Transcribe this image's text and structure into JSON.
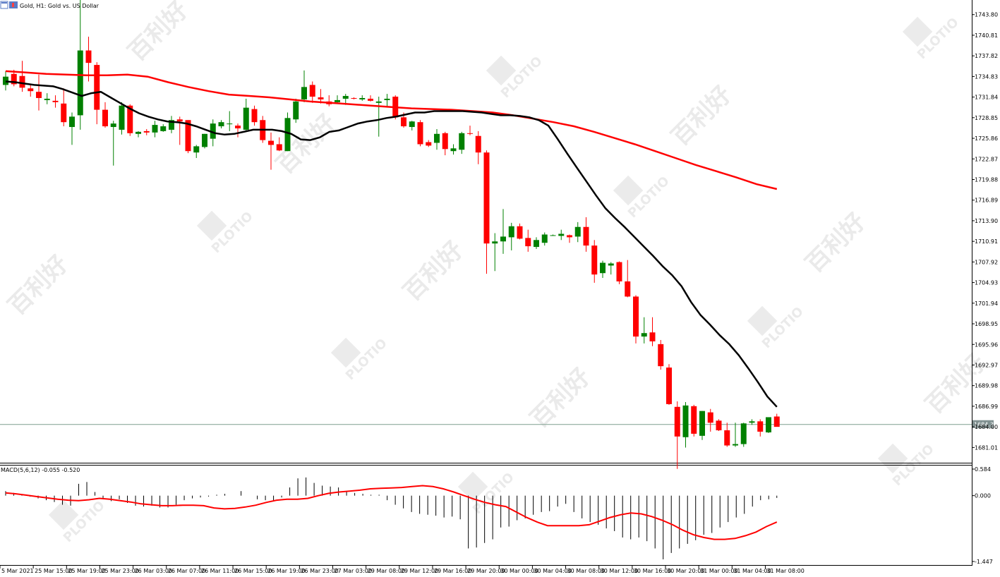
{
  "header": {
    "title": "Gold, H1:  Gold vs. US Dollar",
    "icons": [
      "chart-window-icon",
      "symbol-icon"
    ]
  },
  "watermark": {
    "brand": "PLOTIO",
    "cn": "百利好"
  },
  "chart_data": [
    {
      "type": "candlestick",
      "title": "Gold, H1:  Gold vs. US Dollar",
      "ylim": [
        1679.0,
        1745.0
      ],
      "y_ticks": [
        "1743.80",
        "1740.81",
        "1737.82",
        "1734.83",
        "1731.84",
        "1728.85",
        "1725.86",
        "1722.87",
        "1719.88",
        "1716.89",
        "1713.90",
        "1710.91",
        "1707.92",
        "1704.93",
        "1701.94",
        "1698.95",
        "1695.96",
        "1692.97",
        "1689.98",
        "1686.99",
        "1684.00",
        "1681.01"
      ],
      "current_price": "1684.35",
      "colors": {
        "bull": "#008000",
        "bear": "#ff0000",
        "ma_fast": "#000000",
        "ma_slow": "#ff0000",
        "price_line": "#7f9f8f"
      },
      "series": [
        {
          "values": [
            [
              1733.6,
              1735.6,
              1732.8,
              1734.8
            ],
            [
              1735.2,
              1735.8,
              1733.4,
              1733.7
            ],
            [
              1734.9,
              1737.1,
              1732.6,
              1733.2
            ],
            [
              1733.1,
              1733.6,
              1731.9,
              1732.7
            ],
            [
              1732.6,
              1735.1,
              1729.9,
              1731.7
            ],
            [
              1731.4,
              1732.4,
              1730.8,
              1731.6
            ],
            [
              1731.3,
              1732.1,
              1730.3,
              1731.1
            ],
            [
              1730.9,
              1733.1,
              1727.6,
              1728.2
            ],
            [
              1727.5,
              1729.6,
              1724.9,
              1729.0
            ],
            [
              1729.2,
              1746.3,
              1727.1,
              1738.6
            ],
            [
              1738.6,
              1740.6,
              1734.1,
              1736.8
            ],
            [
              1736.5,
              1736.9,
              1727.9,
              1730.0
            ],
            [
              1730.0,
              1731.1,
              1727.4,
              1727.6
            ],
            [
              1727.5,
              1728.4,
              1721.9,
              1728.0
            ],
            [
              1727.1,
              1731.1,
              1726.4,
              1730.6
            ],
            [
              1730.6,
              1730.8,
              1726.2,
              1726.6
            ],
            [
              1726.5,
              1726.9,
              1726.0,
              1726.8
            ],
            [
              1726.9,
              1727.2,
              1726.3,
              1726.7
            ],
            [
              1726.7,
              1728.4,
              1726.0,
              1727.8
            ],
            [
              1726.9,
              1727.9,
              1726.8,
              1727.6
            ],
            [
              1727.1,
              1729.1,
              1726.6,
              1728.5
            ],
            [
              1728.6,
              1729.0,
              1724.9,
              1728.3
            ],
            [
              1728.5,
              1728.5,
              1723.7,
              1724.0
            ],
            [
              1723.8,
              1724.9,
              1723.0,
              1724.7
            ],
            [
              1724.6,
              1726.5,
              1724.4,
              1726.5
            ],
            [
              1725.8,
              1728.6,
              1724.7,
              1728.0
            ],
            [
              1727.6,
              1728.5,
              1727.3,
              1728.2
            ],
            [
              1728.0,
              1729.8,
              1726.9,
              1728.0
            ],
            [
              1727.7,
              1728.0,
              1726.0,
              1727.3
            ],
            [
              1727.1,
              1731.6,
              1726.9,
              1730.3
            ],
            [
              1730.1,
              1730.6,
              1727.7,
              1728.2
            ],
            [
              1728.5,
              1729.1,
              1725.2,
              1725.6
            ],
            [
              1725.5,
              1726.7,
              1721.3,
              1724.9
            ],
            [
              1725.0,
              1726.0,
              1724.0,
              1724.1
            ],
            [
              1724.0,
              1729.6,
              1724.0,
              1728.8
            ],
            [
              1728.6,
              1731.6,
              1728.1,
              1731.2
            ],
            [
              1731.5,
              1735.7,
              1731.1,
              1733.3
            ],
            [
              1733.6,
              1734.1,
              1731.0,
              1731.9
            ],
            [
              1731.8,
              1733.0,
              1730.9,
              1731.5
            ],
            [
              1731.2,
              1732.1,
              1730.5,
              1730.8
            ],
            [
              1731.1,
              1732.1,
              1730.9,
              1731.4
            ],
            [
              1731.6,
              1732.3,
              1730.7,
              1732.0
            ],
            [
              1731.7,
              1731.8,
              1731.5,
              1731.6
            ],
            [
              1731.5,
              1732.1,
              1731.3,
              1731.7
            ],
            [
              1731.6,
              1732.1,
              1731.2,
              1731.3
            ],
            [
              1731.0,
              1731.9,
              1726.1,
              1731.2
            ],
            [
              1731.4,
              1732.3,
              1730.5,
              1731.6
            ],
            [
              1731.9,
              1732.1,
              1728.6,
              1728.9
            ],
            [
              1728.9,
              1729.6,
              1727.4,
              1727.6
            ],
            [
              1727.5,
              1728.4,
              1727.0,
              1728.3
            ],
            [
              1728.2,
              1728.5,
              1724.7,
              1725.0
            ],
            [
              1725.3,
              1725.6,
              1724.6,
              1724.8
            ],
            [
              1725.2,
              1727.2,
              1724.2,
              1726.5
            ],
            [
              1726.6,
              1726.8,
              1723.4,
              1724.3
            ],
            [
              1724.0,
              1725.0,
              1723.5,
              1724.4
            ],
            [
              1724.2,
              1726.8,
              1723.6,
              1726.6
            ],
            [
              1726.6,
              1727.7,
              1726.3,
              1726.5
            ],
            [
              1726.2,
              1726.9,
              1722.1,
              1723.8
            ],
            [
              1723.8,
              1724.1,
              1706.2,
              1710.6
            ],
            [
              1710.6,
              1712.1,
              1706.6,
              1710.9
            ],
            [
              1710.9,
              1715.6,
              1709.1,
              1711.6
            ],
            [
              1711.5,
              1713.6,
              1709.6,
              1713.1
            ],
            [
              1713.1,
              1713.5,
              1711.2,
              1711.3
            ],
            [
              1711.4,
              1712.6,
              1709.4,
              1710.2
            ],
            [
              1710.1,
              1711.5,
              1709.8,
              1711.1
            ],
            [
              1710.7,
              1712.2,
              1710.3,
              1711.9
            ],
            [
              1711.8,
              1711.9,
              1711.7,
              1711.8
            ],
            [
              1711.7,
              1712.6,
              1711.1,
              1712.0
            ],
            [
              1711.8,
              1711.9,
              1710.7,
              1711.5
            ],
            [
              1711.6,
              1713.7,
              1710.8,
              1713.0
            ],
            [
              1713.0,
              1714.4,
              1709.4,
              1710.3
            ],
            [
              1710.3,
              1711.1,
              1704.9,
              1706.1
            ],
            [
              1706.3,
              1708.1,
              1705.6,
              1707.8
            ],
            [
              1707.4,
              1707.9,
              1706.1,
              1707.7
            ],
            [
              1707.9,
              1708.0,
              1704.7,
              1705.1
            ],
            [
              1705.1,
              1708.2,
              1702.8,
              1702.9
            ],
            [
              1702.9,
              1703.1,
              1696.1,
              1697.1
            ],
            [
              1697.1,
              1699.9,
              1696.1,
              1697.6
            ],
            [
              1697.7,
              1699.9,
              1695.7,
              1696.4
            ],
            [
              1696.0,
              1696.6,
              1692.3,
              1692.8
            ],
            [
              1692.6,
              1693.1,
              1687.2,
              1687.3
            ],
            [
              1686.9,
              1687.7,
              1677.9,
              1682.6
            ],
            [
              1682.5,
              1687.6,
              1681.0,
              1687.1
            ],
            [
              1687.0,
              1687.2,
              1682.6,
              1683.0
            ],
            [
              1682.7,
              1686.3,
              1682.1,
              1686.3
            ],
            [
              1686.1,
              1686.6,
              1683.3,
              1684.6
            ],
            [
              1684.9,
              1685.1,
              1683.4,
              1683.5
            ],
            [
              1683.5,
              1684.6,
              1681.1,
              1681.3
            ],
            [
              1681.3,
              1684.6,
              1681.1,
              1681.5
            ],
            [
              1681.5,
              1684.6,
              1681.1,
              1684.5
            ],
            [
              1684.6,
              1685.1,
              1684.3,
              1684.8
            ],
            [
              1684.8,
              1685.1,
              1682.6,
              1683.3
            ],
            [
              1683.2,
              1685.3,
              1683.1,
              1685.4
            ],
            [
              1685.5,
              1685.9,
              1684.2,
              1684.0
            ]
          ]
        },
        {
          "values": [
            1734.1,
            1734.0,
            1733.8,
            1733.6,
            1733.5,
            1733.4,
            1733.0,
            1732.5,
            1732.0,
            1732.4,
            1732.6,
            1731.8,
            1731.0,
            1730.2,
            1729.5,
            1729.0,
            1728.6,
            1728.3,
            1728.2,
            1728.0,
            1727.6,
            1727.1,
            1726.6,
            1726.4,
            1726.5,
            1726.8,
            1727.1,
            1727.1,
            1727.1,
            1726.9,
            1726.5,
            1725.7,
            1725.6,
            1726.0,
            1726.8,
            1727.0,
            1727.5,
            1728.0,
            1728.3,
            1728.5,
            1728.8,
            1729.0,
            1729.3,
            1729.6,
            1729.6,
            1729.8,
            1729.8,
            1729.8,
            1729.8,
            1729.7,
            1729.6,
            1729.4,
            1729.2,
            1729.2,
            1729.1,
            1728.9,
            1728.5,
            1727.7,
            1725.7,
            1723.6,
            1721.6,
            1719.6,
            1717.6,
            1715.7,
            1714.3,
            1713.0,
            1711.6,
            1710.2,
            1708.8,
            1707.3,
            1706.0,
            1704.4,
            1702.1,
            1700.2,
            1698.8,
            1697.3,
            1696.0,
            1694.4,
            1692.5,
            1690.5,
            1688.4,
            1686.9
          ]
        },
        {
          "values": [
            1735.6,
            1735.4,
            1735.2,
            1735.1,
            1735.0,
            1735.0,
            1735.1,
            1734.8,
            1734.0,
            1733.3,
            1732.7,
            1732.2,
            1732.0,
            1731.8,
            1731.5,
            1731.2,
            1731.0,
            1730.8,
            1730.6,
            1730.4,
            1730.2,
            1730.1,
            1730.0,
            1729.8,
            1729.6,
            1729.2,
            1728.7,
            1728.2,
            1727.6,
            1726.8,
            1725.9,
            1725.0,
            1724.0,
            1723.0,
            1722.0,
            1721.1,
            1720.2,
            1719.2,
            1718.5
          ]
        }
      ]
    },
    {
      "type": "bar",
      "title": "MACD(5,6,12) -0.055 -0.520",
      "ylim": [
        -1.447,
        0.584
      ],
      "y_ticks": [
        "0.584",
        "0.000",
        "-1.447"
      ],
      "colors": {
        "histogram": "#000000",
        "signal": "#ff0000"
      },
      "series": [
        {
          "values": [
            0.1,
            0.06,
            0.02,
            -0.02,
            -0.06,
            -0.1,
            -0.14,
            -0.2,
            -0.22,
            0.26,
            0.3,
            0.08,
            -0.08,
            -0.12,
            -0.08,
            -0.16,
            -0.22,
            -0.24,
            -0.22,
            -0.26,
            -0.26,
            -0.2,
            -0.1,
            -0.06,
            -0.04,
            -0.02,
            0.02,
            0.04,
            0.0,
            0.1,
            0.0,
            -0.08,
            -0.1,
            -0.12,
            -0.04,
            0.18,
            0.38,
            0.4,
            0.28,
            0.22,
            0.2,
            0.18,
            0.1,
            0.06,
            0.04,
            0.02,
            0.02,
            -0.1,
            -0.2,
            -0.28,
            -0.36,
            -0.4,
            -0.42,
            -0.44,
            -0.48,
            -0.46,
            -0.52,
            -1.16,
            -1.14,
            -1.04,
            -0.96,
            -0.7,
            -0.68,
            -0.54,
            -0.5,
            -0.42,
            -0.36,
            -0.34,
            -0.24,
            -0.18,
            -0.36,
            -0.5,
            -0.58,
            -0.64,
            -0.72,
            -0.78,
            -0.92,
            -0.96,
            -0.92,
            -1.0,
            -1.16,
            -1.4,
            -1.26,
            -1.16,
            -1.06,
            -0.98,
            -0.86,
            -0.82,
            -0.7,
            -0.58,
            -0.48,
            -0.4,
            -0.24,
            -0.1,
            -0.08,
            -0.05
          ]
        },
        {
          "values": [
            0.06,
            0.04,
            0.01,
            -0.02,
            -0.05,
            -0.08,
            -0.1,
            -0.11,
            -0.09,
            -0.06,
            -0.08,
            -0.11,
            -0.14,
            -0.18,
            -0.2,
            -0.22,
            -0.22,
            -0.21,
            -0.21,
            -0.22,
            -0.27,
            -0.29,
            -0.28,
            -0.25,
            -0.21,
            -0.15,
            -0.1,
            -0.08,
            -0.08,
            -0.06,
            0.0,
            0.05,
            0.08,
            0.1,
            0.12,
            0.15,
            0.16,
            0.17,
            0.18,
            0.2,
            0.22,
            0.2,
            0.15,
            0.08,
            0.0,
            -0.08,
            -0.15,
            -0.2,
            -0.24,
            -0.36,
            -0.48,
            -0.58,
            -0.66,
            -0.66,
            -0.66,
            -0.66,
            -0.64,
            -0.56,
            -0.48,
            -0.42,
            -0.38,
            -0.4,
            -0.46,
            -0.54,
            -0.64,
            -0.76,
            -0.86,
            -0.92,
            -0.96,
            -0.96,
            -0.94,
            -0.88,
            -0.8,
            -0.68,
            -0.58
          ]
        }
      ]
    }
  ],
  "x_axis": {
    "labels": [
      "5 Mar 2021",
      "25 Mar 15:00",
      "25 Mar 19:00",
      "25 Mar 23:00",
      "26 Mar 03:00",
      "26 Mar 07:00",
      "26 Mar 11:00",
      "26 Mar 15:00",
      "26 Mar 19:00",
      "26 Mar 23:00",
      "27 Mar 03:00",
      "29 Mar 08:00",
      "29 Mar 12:00",
      "29 Mar 16:00",
      "29 Mar 20:00",
      "30 Mar 00:00",
      "30 Mar 04:00",
      "30 Mar 08:00",
      "30 Mar 12:00",
      "30 Mar 16:00",
      "30 Mar 20:00",
      "31 Mar 00:00",
      "31 Mar 04:00",
      "31 Mar 08:00"
    ]
  }
}
